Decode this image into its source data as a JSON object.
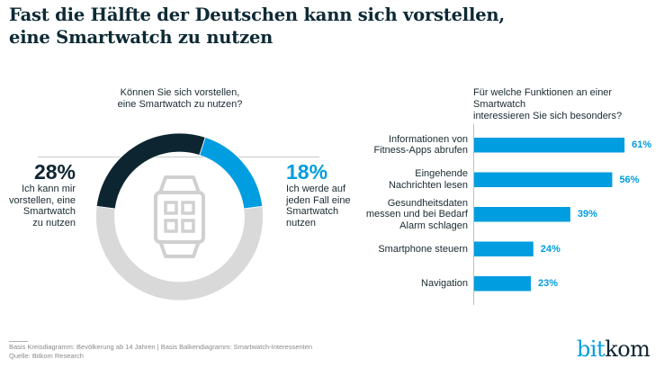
{
  "title": {
    "line1": "Fast die Hälfte der Deutschen kann sich vorstellen,",
    "line2": "eine Smartwatch zu nutzen"
  },
  "colors": {
    "primary_dark": "#0d2530",
    "accent_blue": "#009de0",
    "remainder_gray": "#d9d9d9",
    "icon_gray": "#d0d0d0"
  },
  "chart_data": [
    {
      "type": "pie",
      "variant": "donut",
      "title": [
        "Können Sie sich vorstellen,",
        "eine Smartwatch zu nutzen?"
      ],
      "center_icon": "smartwatch-icon",
      "slices": [
        {
          "label": "Ich kann mir vorstellen, eine Smartwatch zu nutzen",
          "value": 28,
          "color": "#0d2530",
          "label_lines": [
            "Ich kann mir",
            "vorstellen, eine",
            "Smartwatch",
            "zu nutzen"
          ],
          "display": "28%"
        },
        {
          "label": "Ich werde auf jeden Fall eine Smartwatch nutzen",
          "value": 18,
          "color": "#009de0",
          "label_lines": [
            "Ich werde auf",
            "jeden Fall eine",
            "Smartwatch",
            "nutzen"
          ],
          "display": "18%"
        },
        {
          "label": "Rest",
          "value": 54,
          "color": "#d9d9d9"
        }
      ],
      "unit": "%"
    },
    {
      "type": "bar",
      "orientation": "horizontal",
      "title": [
        "Für welche Funktionen an einer Smartwatch",
        "interessieren Sie sich besonders?"
      ],
      "categories": [
        [
          "Informationen von",
          "Fitness-Apps abrufen"
        ],
        [
          "Eingehende",
          "Nachrichten lesen"
        ],
        [
          "Gesundheitsdaten",
          "messen und bei Bedarf",
          "Alarm schlagen"
        ],
        [
          "Smartphone steuern"
        ],
        [
          "Navigation"
        ]
      ],
      "values": [
        61,
        56,
        39,
        24,
        23
      ],
      "value_labels": [
        "61%",
        "56%",
        "39%",
        "24%",
        "23%"
      ],
      "color": "#009de0",
      "xlim": [
        0,
        100
      ],
      "unit": "%",
      "grid": false
    }
  ],
  "footer": {
    "line1": "Basis Kreisdiagramm: Bevölkerung ab 14 Jahren | Basis Balkendiagramm: Smartwatch-Interessenten",
    "line2": "Quelle: Bitkom Research"
  },
  "logo": {
    "part1": "bit",
    "part2": "kom"
  }
}
